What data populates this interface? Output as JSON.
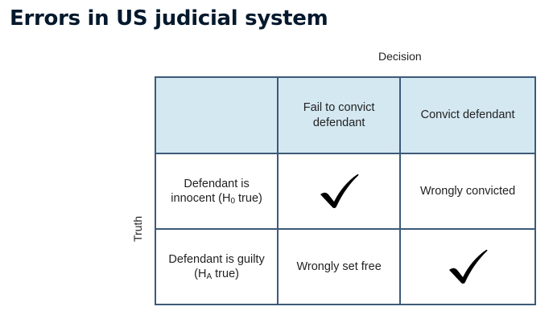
{
  "title": "Errors in US judicial system",
  "axes": {
    "column_axis": "Decision",
    "row_axis": "Truth"
  },
  "columns": [
    "",
    "Fail to convict defendant",
    "Convict defendant"
  ],
  "rows": [
    {
      "header_main": "Defendant is innocent (H",
      "header_sub": "0",
      "header_tail": " true)",
      "cells": [
        {
          "type": "check",
          "text": ""
        },
        {
          "type": "text",
          "text": "Wrongly convicted"
        }
      ]
    },
    {
      "header_main": "Defendant is guilty (H",
      "header_sub": "A",
      "header_tail": " true)",
      "cells": [
        {
          "type": "text",
          "text": "Wrongly set free"
        },
        {
          "type": "check",
          "text": ""
        }
      ]
    }
  ],
  "colors": {
    "header_fill": "#d4e8f2",
    "grid_line": "#3c5a78",
    "title": "#05192d"
  },
  "icons": {
    "correct_decision": "checkmark-icon"
  }
}
